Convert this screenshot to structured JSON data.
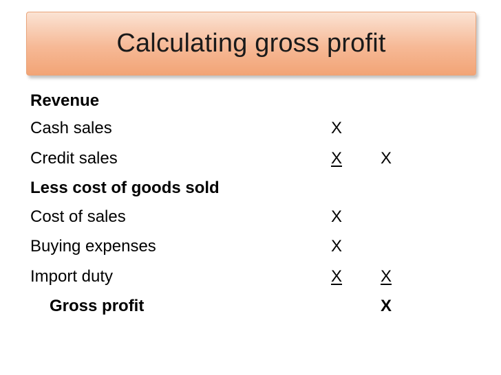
{
  "title": "Calculating gross profit",
  "rows": [
    {
      "label": "Revenue",
      "col1": "",
      "col2": ""
    },
    {
      "label": "Cash sales",
      "col1": "X",
      "col2": ""
    },
    {
      "label": "Credit sales",
      "col1": "X",
      "col2": "X"
    },
    {
      "label": "Less cost of goods sold",
      "col1": "",
      "col2": ""
    },
    {
      "label": "Cost of sales",
      "col1": "X",
      "col2": ""
    },
    {
      "label": "Buying expenses",
      "col1": "X",
      "col2": ""
    },
    {
      "label": "Import duty",
      "col1": "X",
      "col2": "X"
    },
    {
      "label": "Gross profit",
      "col1": "",
      "col2": "X"
    }
  ]
}
